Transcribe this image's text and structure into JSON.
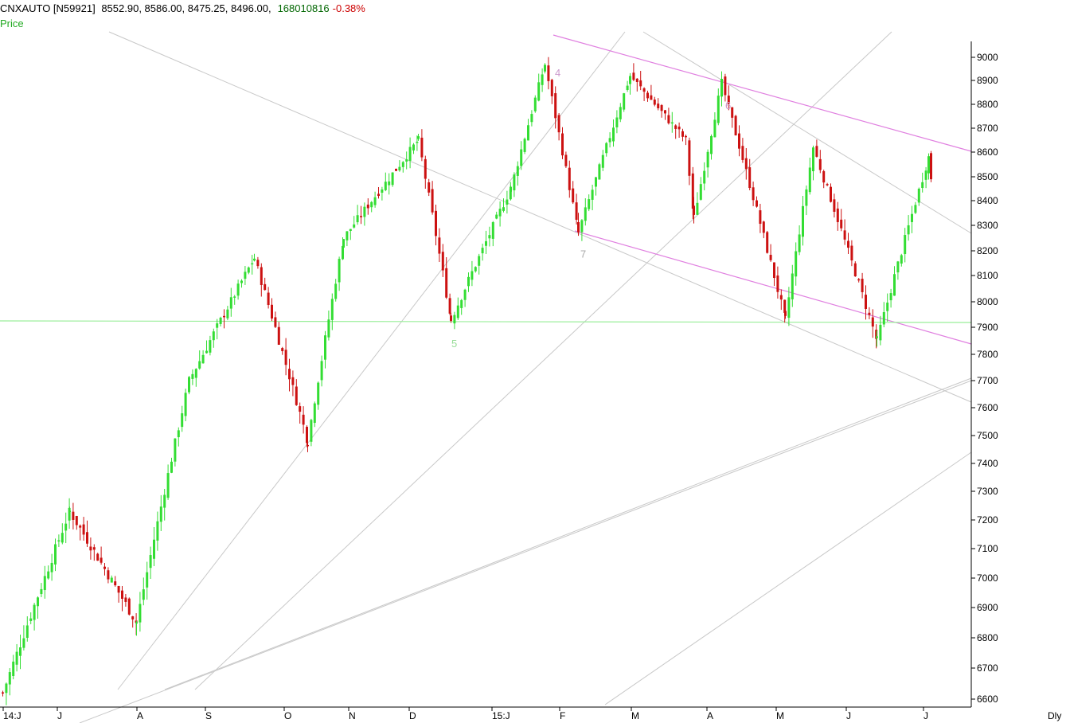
{
  "header": {
    "symbol": "CNXAUTO [N59921]",
    "ohlc": "8552.90, 8586.00, 8475.25, 8496.00,",
    "volume": "168010816",
    "change": "-0.38%",
    "price_label": "Price",
    "symbol_color": "#000000",
    "volume_color": "#006600",
    "change_color": "#cc0000",
    "price_color": "#22aa22"
  },
  "period_label": "Dly",
  "colors": {
    "up": "#33dd33",
    "down": "#cc1111",
    "trend_gray": "#c8c8c8",
    "trend_pink": "#e080e0",
    "support_line": "#99ee99"
  },
  "chart_data": {
    "type": "candlestick",
    "ylim": [
      6600,
      9000
    ],
    "yticks": [
      6600,
      6700,
      6800,
      6900,
      7000,
      7100,
      7200,
      7300,
      7400,
      7500,
      7600,
      7700,
      7800,
      7900,
      8000,
      8100,
      8200,
      8300,
      8400,
      8500,
      8600,
      8700,
      8800,
      8900,
      9000
    ],
    "xticks": [
      "14:J",
      "J",
      "A",
      "S",
      "O",
      "N",
      "D",
      "15:J",
      "F",
      "M",
      "A",
      "M",
      "J",
      "J"
    ],
    "last": {
      "open": 8552.9,
      "high": 8586.0,
      "low": 8475.25,
      "close": 8496.0,
      "volume": 168010816,
      "change_pct": -0.38
    },
    "keypoints": [
      {
        "month": "J",
        "price": 6620
      },
      {
        "month": "J",
        "price": 7230
      },
      {
        "month": "A",
        "price": 6850
      },
      {
        "month": "S",
        "price": 7700
      },
      {
        "month": "S",
        "price": 8170
      },
      {
        "month": "O",
        "price": 7480
      },
      {
        "month": "N",
        "price": 8250
      },
      {
        "month": "D",
        "price": 8650
      },
      {
        "month": "D",
        "price": 7930
      },
      {
        "month": "15:J",
        "price": 8450
      },
      {
        "month": "F",
        "price": 8970
      },
      {
        "month": "F",
        "price": 8270
      },
      {
        "month": "M",
        "price": 8920
      },
      {
        "month": "M",
        "price": 8650
      },
      {
        "month": "A",
        "price": 8330
      },
      {
        "month": "A",
        "price": 8890
      },
      {
        "month": "M",
        "price": 7930
      },
      {
        "month": "J",
        "price": 8620
      },
      {
        "month": "J",
        "price": 7850
      },
      {
        "month": "J",
        "price": 8580
      },
      {
        "month": "J",
        "price": 8496
      }
    ],
    "annotations": [
      {
        "text": "4",
        "price": 8980
      },
      {
        "text": "7",
        "price": 8230
      },
      {
        "text": "5",
        "price": 7880
      },
      {
        "text": "6",
        "price": 8840
      }
    ],
    "support_level": 7925
  }
}
